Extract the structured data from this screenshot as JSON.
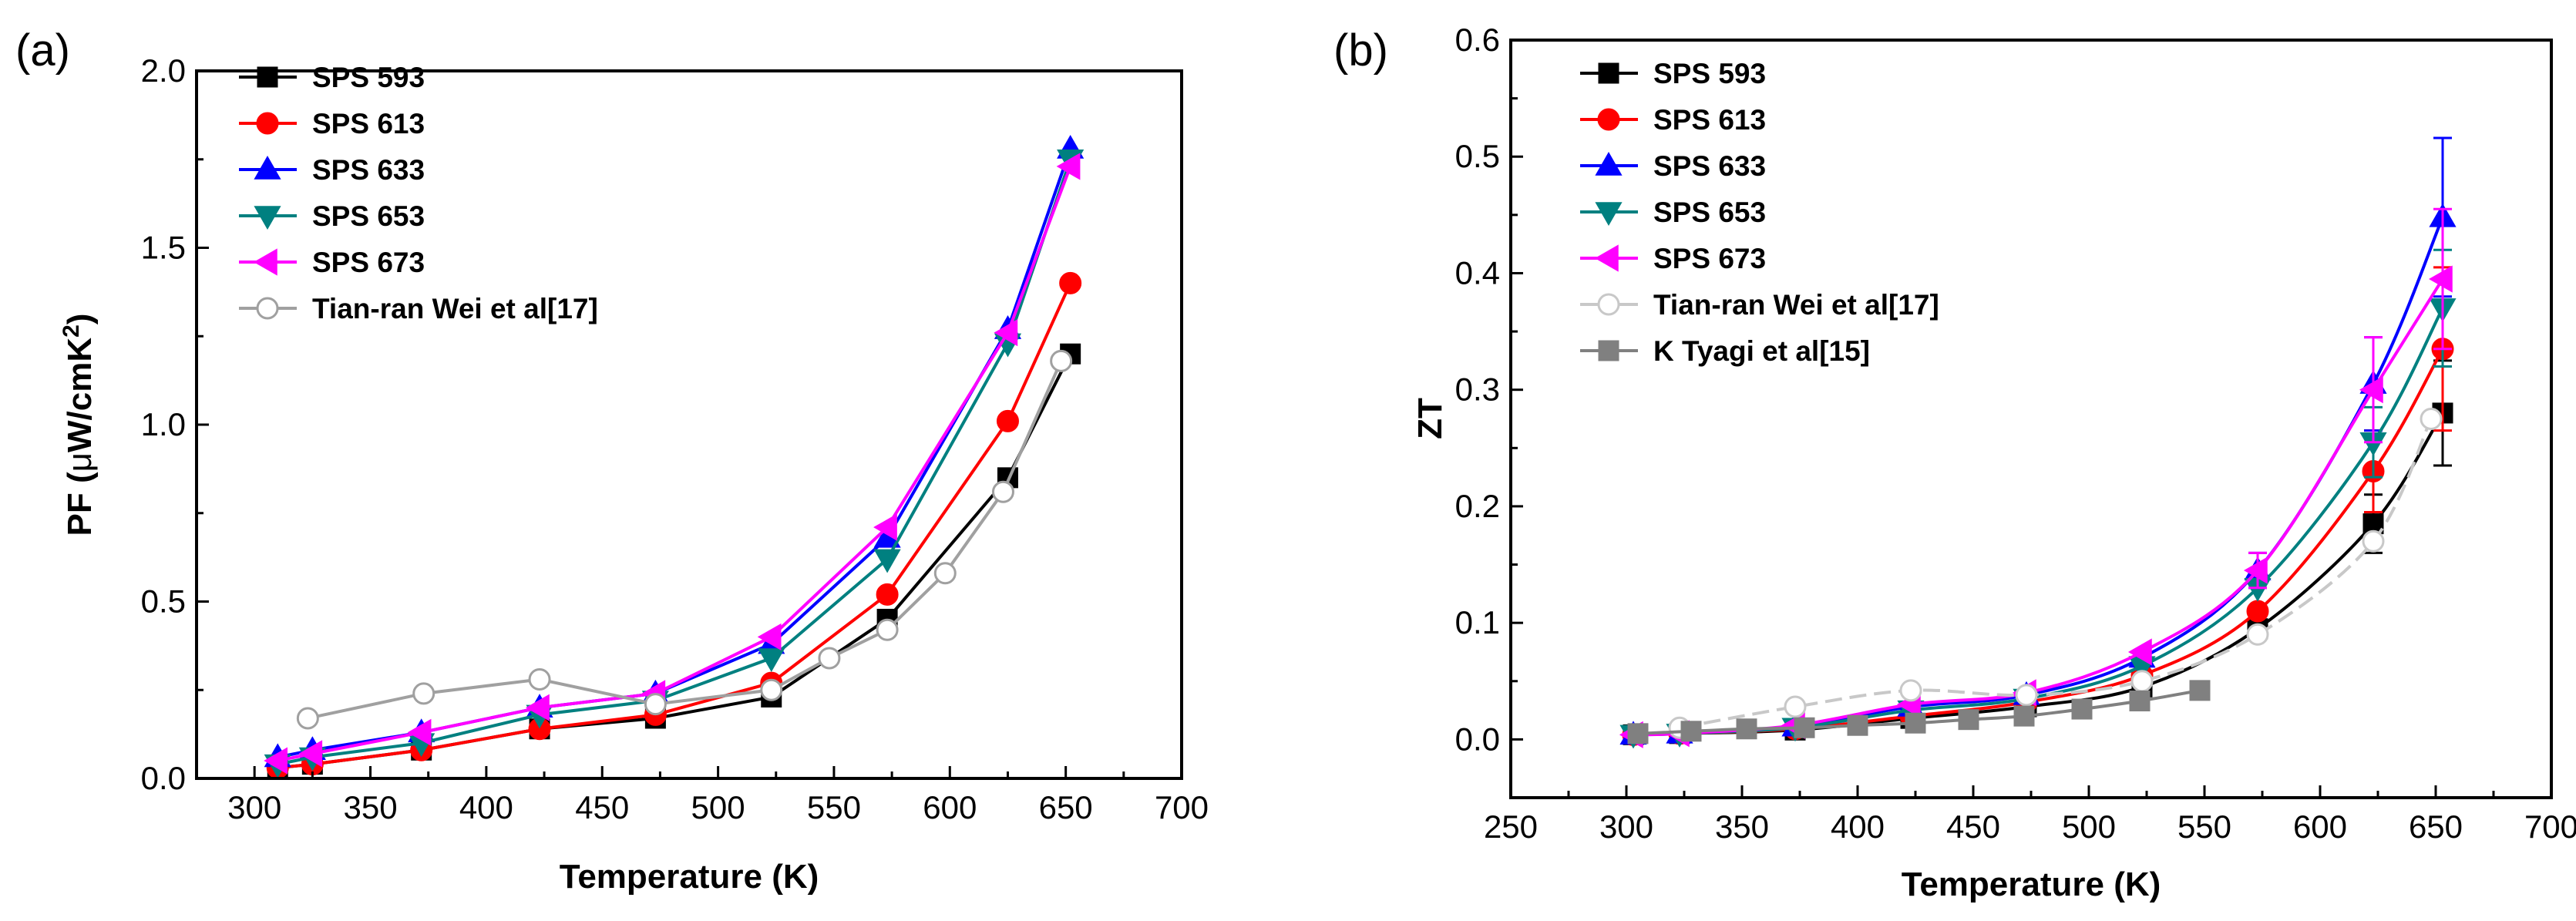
{
  "chart_data": [
    {
      "panel_label": "(a)",
      "type": "line",
      "xlabel": "Temperature (K)",
      "ylabel": "PF (μW/cmK²)",
      "ylabel_parts": {
        "prefix": "PF (",
        "mu": "μ",
        "unit": "W/cmK",
        "sup": "2",
        "suffix": ")"
      },
      "xlim": [
        275,
        700
      ],
      "ylim": [
        0,
        2.0
      ],
      "xticks": [
        "300",
        "350",
        "400",
        "450",
        "500",
        "550",
        "600",
        "650",
        "700"
      ],
      "yticks": [
        "0.0",
        "0.5",
        "1.0",
        "1.5",
        "2.0"
      ],
      "grid": false,
      "legend_position": "top-left",
      "series": [
        {
          "name": "SPS 593",
          "color": "#000000",
          "marker": "square",
          "filled": true,
          "x": [
            310,
            325,
            372,
            423,
            473,
            523,
            573,
            625,
            652
          ],
          "y": [
            0.03,
            0.04,
            0.08,
            0.14,
            0.17,
            0.23,
            0.45,
            0.85,
            1.2
          ]
        },
        {
          "name": "SPS 613",
          "color": "#ff0000",
          "marker": "circle",
          "filled": true,
          "x": [
            310,
            325,
            372,
            423,
            473,
            523,
            573,
            625,
            652
          ],
          "y": [
            0.03,
            0.04,
            0.08,
            0.14,
            0.18,
            0.27,
            0.52,
            1.01,
            1.4
          ]
        },
        {
          "name": "SPS 633",
          "color": "#0000ff",
          "marker": "triangle-up",
          "filled": true,
          "x": [
            310,
            325,
            372,
            423,
            473,
            523,
            573,
            625,
            652
          ],
          "y": [
            0.06,
            0.08,
            0.13,
            0.2,
            0.24,
            0.38,
            0.68,
            1.27,
            1.78
          ]
        },
        {
          "name": "SPS 653",
          "color": "#008080",
          "marker": "triangle-down",
          "filled": true,
          "x": [
            310,
            325,
            372,
            423,
            473,
            523,
            573,
            625,
            652
          ],
          "y": [
            0.04,
            0.06,
            0.1,
            0.18,
            0.22,
            0.34,
            0.62,
            1.23,
            1.75
          ]
        },
        {
          "name": "SPS 673",
          "color": "#ff00ff",
          "marker": "triangle-left",
          "filled": true,
          "x": [
            310,
            325,
            372,
            423,
            473,
            523,
            573,
            625,
            652
          ],
          "y": [
            0.05,
            0.07,
            0.13,
            0.2,
            0.24,
            0.4,
            0.71,
            1.26,
            1.73
          ]
        },
        {
          "name": "Tian-ran Wei et al[17]",
          "color": "#a0a0a0",
          "marker": "circle",
          "filled": false,
          "x": [
            323,
            373,
            423,
            473,
            523,
            548,
            573,
            598,
            623,
            648
          ],
          "y": [
            0.17,
            0.24,
            0.28,
            0.21,
            0.25,
            0.34,
            0.42,
            0.58,
            0.81,
            1.18
          ]
        }
      ]
    },
    {
      "panel_label": "(b)",
      "type": "line",
      "xlabel": "Temperature (K)",
      "ylabel": "ZT",
      "xlim": [
        250,
        700
      ],
      "ylim": [
        -0.05,
        0.6
      ],
      "xticks": [
        "250",
        "300",
        "350",
        "400",
        "450",
        "500",
        "550",
        "600",
        "650",
        "700"
      ],
      "yticks": [
        "0.0",
        "0.1",
        "0.2",
        "0.3",
        "0.4",
        "0.5",
        "0.6"
      ],
      "grid": false,
      "legend_position": "top-left",
      "series": [
        {
          "name": "SPS 593",
          "color": "#000000",
          "marker": "square",
          "filled": true,
          "x": [
            303,
            323,
            373,
            423,
            473,
            523,
            573,
            623,
            653
          ],
          "y": [
            0.004,
            0.005,
            0.008,
            0.018,
            0.028,
            0.045,
            0.095,
            0.185,
            0.28
          ],
          "err": [
            0,
            0,
            0,
            0,
            0,
            0,
            0,
            0.025,
            0.045
          ]
        },
        {
          "name": "SPS 613",
          "color": "#ff0000",
          "marker": "circle",
          "filled": true,
          "x": [
            303,
            323,
            373,
            423,
            473,
            523,
            573,
            623,
            653
          ],
          "y": [
            0.004,
            0.005,
            0.009,
            0.02,
            0.032,
            0.055,
            0.11,
            0.23,
            0.335
          ],
          "err": [
            0,
            0,
            0,
            0,
            0,
            0,
            0,
            0.035,
            0.07
          ]
        },
        {
          "name": "SPS 633",
          "color": "#0000ff",
          "marker": "triangle-up",
          "filled": true,
          "x": [
            303,
            323,
            373,
            423,
            473,
            523,
            573,
            623,
            653
          ],
          "y": [
            0.004,
            0.005,
            0.011,
            0.028,
            0.038,
            0.07,
            0.145,
            0.305,
            0.448
          ],
          "err": [
            0,
            0,
            0,
            0,
            0,
            0,
            0.015,
            0.04,
            0.068
          ]
        },
        {
          "name": "SPS 653",
          "color": "#008080",
          "marker": "triangle-down",
          "filled": true,
          "x": [
            303,
            323,
            373,
            423,
            473,
            523,
            573,
            623,
            653
          ],
          "y": [
            0.004,
            0.005,
            0.01,
            0.025,
            0.035,
            0.063,
            0.13,
            0.255,
            0.37
          ],
          "err": [
            0,
            0,
            0,
            0,
            0,
            0,
            0,
            0.03,
            0.05
          ]
        },
        {
          "name": "SPS 673",
          "color": "#ff00ff",
          "marker": "triangle-left",
          "filled": true,
          "x": [
            303,
            323,
            373,
            423,
            473,
            523,
            573,
            623,
            653
          ],
          "y": [
            0.004,
            0.005,
            0.012,
            0.03,
            0.04,
            0.075,
            0.145,
            0.3,
            0.395
          ],
          "err": [
            0,
            0,
            0,
            0,
            0,
            0,
            0.015,
            0.045,
            0.06
          ]
        },
        {
          "name": "Tian-ran Wei et al[17]",
          "color": "#c8c8c8",
          "marker": "circle",
          "filled": false,
          "x": [
            323,
            373,
            423,
            473,
            523,
            573,
            623,
            648
          ],
          "y": [
            0.01,
            0.028,
            0.042,
            0.038,
            0.05,
            0.09,
            0.17,
            0.275
          ],
          "err": [
            0,
            0,
            0,
            0,
            0,
            0,
            0,
            0
          ]
        },
        {
          "name": "K Tyagi et al[15]",
          "color": "#808080",
          "marker": "square",
          "filled": true,
          "x": [
            305,
            328,
            352,
            377,
            400,
            425,
            448,
            472,
            497,
            522,
            548
          ],
          "y": [
            0.005,
            0.007,
            0.009,
            0.01,
            0.012,
            0.014,
            0.017,
            0.02,
            0.026,
            0.033,
            0.042
          ],
          "err": [
            0,
            0,
            0,
            0,
            0,
            0,
            0,
            0,
            0,
            0,
            0
          ]
        }
      ]
    }
  ]
}
